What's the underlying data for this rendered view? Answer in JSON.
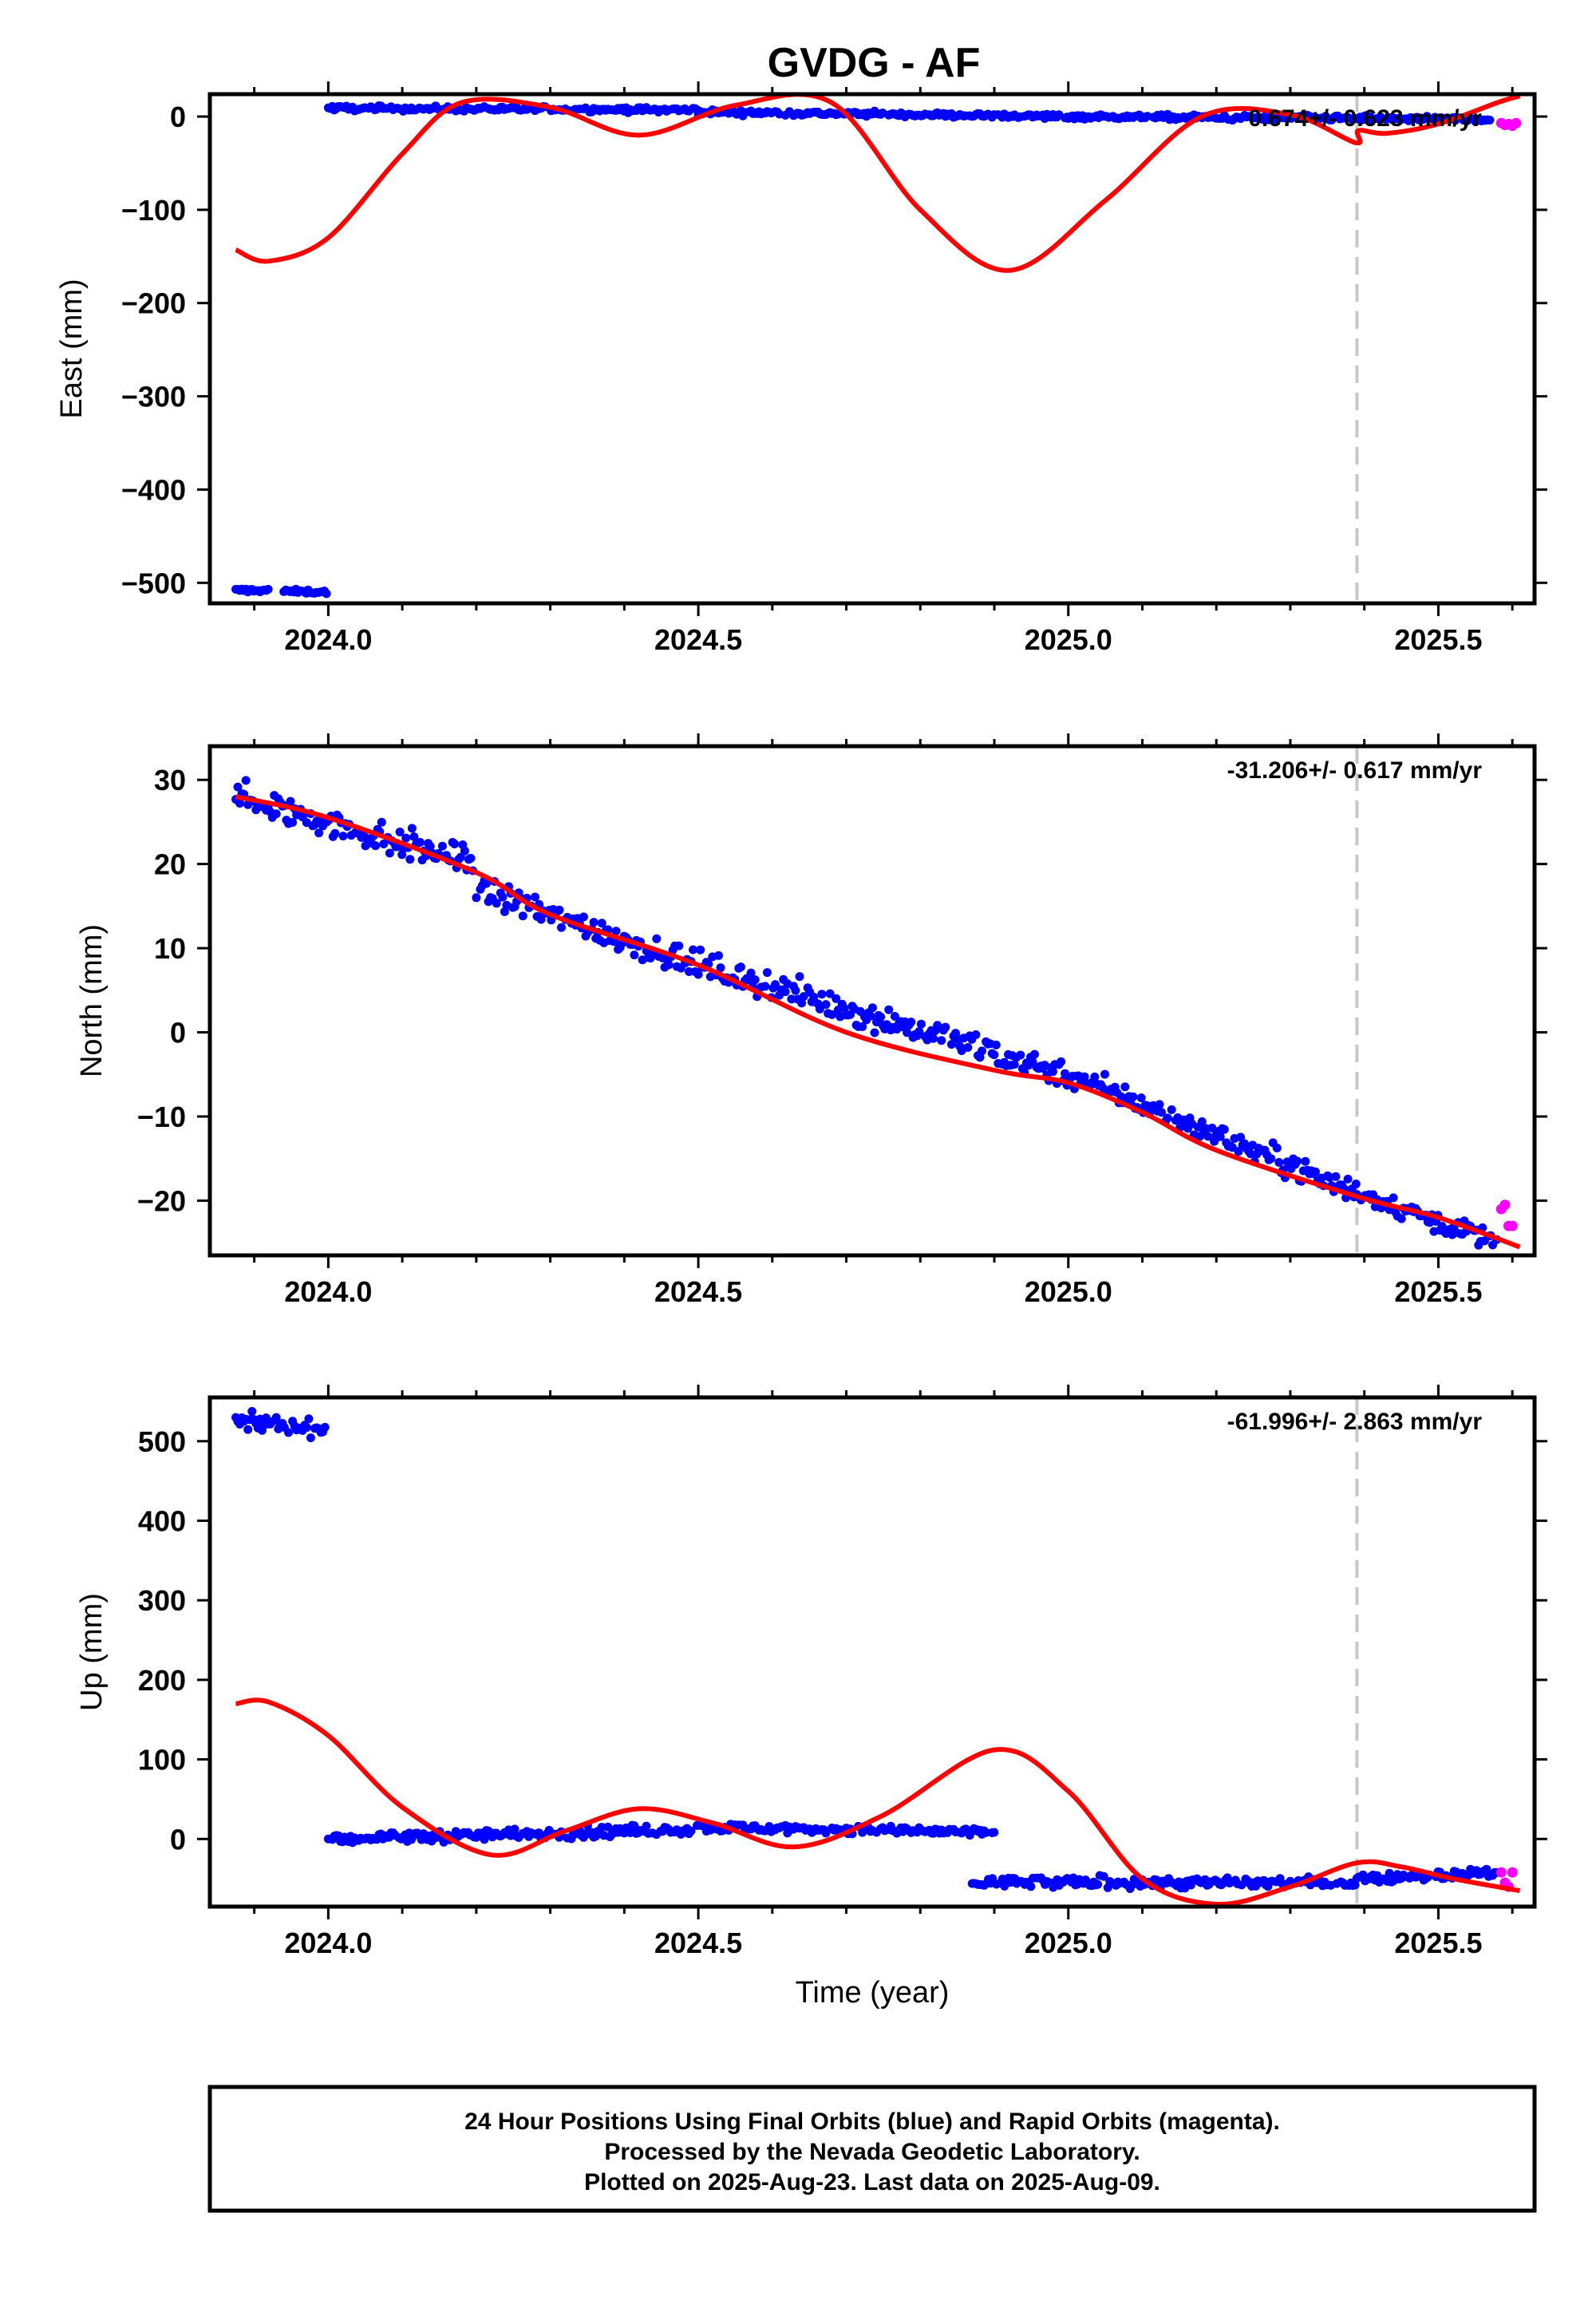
{
  "title": "GVDG - AF",
  "caption": [
    "24 Hour Positions Using Final Orbits (blue) and Rapid Orbits (magenta).",
    "Processed by the Nevada Geodetic Laboratory.",
    "Plotted on 2025-Aug-23. Last data on 2025-Aug-09."
  ],
  "colors": {
    "final": "#0000ff",
    "rapid": "#ff00ff",
    "model": "#ff0000",
    "event_line": "#c8c8c8",
    "frame": "#000000"
  },
  "chart_data": [
    {
      "type": "scatter",
      "name": "east",
      "ylabel": "East (mm)",
      "xlabel": "",
      "xlim": [
        2023.84,
        2025.63
      ],
      "ylim": [
        -522,
        24
      ],
      "xticks": [
        2024.0,
        2024.5,
        2025.0,
        2025.5
      ],
      "xtick_labels": [
        "2024.0",
        "2024.5",
        "2025.0",
        "2025.5"
      ],
      "yticks": [
        0,
        -100,
        -200,
        -300,
        -400,
        -500
      ],
      "ytick_labels": [
        "0",
        "−100",
        "−200",
        "−300",
        "−400",
        "−500"
      ],
      "rate_label": "0.674+/- 0.623 mm/yr",
      "event_x": 2025.39,
      "final_segments": [
        {
          "x": [
            2023.875,
            2023.92
          ],
          "y": [
            -508,
            -508
          ],
          "noise": 1.5
        },
        {
          "x": [
            2023.94,
            2024.0
          ],
          "y": [
            -509,
            -510
          ],
          "noise": 1.5
        },
        {
          "x": [
            2024.0,
            2024.5
          ],
          "y": [
            9,
            7
          ],
          "noise": 1.8
        },
        {
          "x": [
            2024.5,
            2025.0
          ],
          "y": [
            5,
            0
          ],
          "noise": 1.8
        },
        {
          "x": [
            2025.0,
            2025.57
          ],
          "y": [
            0,
            -3
          ],
          "noise": 1.8
        }
      ],
      "rapid_points": {
        "x": [
          2025.585,
          2025.59,
          2025.595,
          2025.6,
          2025.605
        ],
        "y": [
          -7,
          -9,
          -8,
          -10,
          -7
        ]
      },
      "model_curve": {
        "x": [
          2023.875,
          2023.92,
          2024.0,
          2024.1,
          2024.18,
          2024.3,
          2024.42,
          2024.55,
          2024.68,
          2024.8,
          2024.92,
          2025.05,
          2025.18,
          2025.3,
          2025.388,
          2025.392,
          2025.43,
          2025.5,
          2025.58,
          2025.61
        ],
        "y": [
          -143,
          -155,
          -130,
          -40,
          15,
          10,
          -20,
          12,
          15,
          -100,
          -165,
          -90,
          0,
          2,
          -28,
          -15,
          -18,
          -8,
          15,
          22
        ]
      }
    },
    {
      "type": "scatter",
      "name": "north",
      "ylabel": "North (mm)",
      "xlabel": "",
      "xlim": [
        2023.84,
        2025.63
      ],
      "ylim": [
        -26.5,
        34
      ],
      "xticks": [
        2024.0,
        2024.5,
        2025.0,
        2025.5
      ],
      "xtick_labels": [
        "2024.0",
        "2024.5",
        "2025.0",
        "2025.5"
      ],
      "yticks": [
        30,
        20,
        10,
        0,
        -10,
        -20
      ],
      "ytick_labels": [
        "30",
        "20",
        "10",
        "0",
        "−10",
        "−20"
      ],
      "rate_label": "-31.206+/- 0.617 mm/yr",
      "event_x": 2025.39,
      "final_segments": [
        {
          "x": [
            2023.875,
            2024.2
          ],
          "y": [
            28,
            20
          ],
          "noise": 1.3
        },
        {
          "x": [
            2024.2,
            2024.5
          ],
          "y": [
            17,
            8
          ],
          "noise": 1.2
        },
        {
          "x": [
            2024.5,
            2025.0
          ],
          "y": [
            8,
            -5
          ],
          "noise": 1.2
        },
        {
          "x": [
            2025.0,
            2025.39
          ],
          "y": [
            -5,
            -19
          ],
          "noise": 1.0
        },
        {
          "x": [
            2025.39,
            2025.58
          ],
          "y": [
            -19,
            -25
          ],
          "noise": 0.9
        }
      ],
      "rapid_points": {
        "x": [
          2025.585,
          2025.59,
          2025.595,
          2025.6
        ],
        "y": [
          -21,
          -20.5,
          -23,
          -23
        ]
      },
      "model_curve": {
        "x": [
          2023.875,
          2024.0,
          2024.2,
          2024.3,
          2024.5,
          2024.7,
          2024.9,
          2025.0,
          2025.1,
          2025.2,
          2025.39,
          2025.5,
          2025.61
        ],
        "y": [
          28,
          25.5,
          19,
          14,
          8,
          0,
          -4.5,
          -6,
          -9.5,
          -14,
          -19.5,
          -22,
          -25.5
        ]
      }
    },
    {
      "type": "scatter",
      "name": "up",
      "ylabel": "Up (mm)",
      "xlabel": "Time (year)",
      "xlim": [
        2023.84,
        2025.63
      ],
      "ylim": [
        -85,
        555
      ],
      "xticks": [
        2024.0,
        2024.5,
        2025.0,
        2025.5
      ],
      "xtick_labels": [
        "2024.0",
        "2024.5",
        "2025.0",
        "2025.5"
      ],
      "yticks": [
        500,
        400,
        300,
        200,
        100,
        0
      ],
      "ytick_labels": [
        "500",
        "400",
        "300",
        "200",
        "100",
        "0"
      ],
      "rate_label": "-61.996+/- 2.863 mm/yr",
      "event_x": 2025.39,
      "final_segments": [
        {
          "x": [
            2023.875,
            2024.0
          ],
          "y": [
            525,
            515
          ],
          "noise": 7
        },
        {
          "x": [
            2024.0,
            2024.5
          ],
          "y": [
            0,
            12
          ],
          "noise": 5
        },
        {
          "x": [
            2024.5,
            2024.9
          ],
          "y": [
            15,
            8
          ],
          "noise": 4
        },
        {
          "x": [
            2024.87,
            2025.39
          ],
          "y": [
            -55,
            -55
          ],
          "noise": 5
        },
        {
          "x": [
            2025.39,
            2025.58
          ],
          "y": [
            -50,
            -42
          ],
          "noise": 4
        }
      ],
      "rapid_points": {
        "x": [
          2025.585,
          2025.59,
          2025.595,
          2025.6
        ],
        "y": [
          -42,
          -55,
          -60,
          -42
        ]
      },
      "model_curve": {
        "x": [
          2023.875,
          2023.92,
          2024.0,
          2024.1,
          2024.22,
          2024.32,
          2024.42,
          2024.52,
          2024.63,
          2024.75,
          2024.9,
          2025.0,
          2025.1,
          2025.2,
          2025.3,
          2025.39,
          2025.45,
          2025.52,
          2025.61
        ],
        "y": [
          170,
          172,
          130,
          40,
          -20,
          10,
          38,
          20,
          -10,
          30,
          112,
          60,
          -50,
          -82,
          -60,
          -30,
          -35,
          -50,
          -65
        ]
      }
    }
  ]
}
